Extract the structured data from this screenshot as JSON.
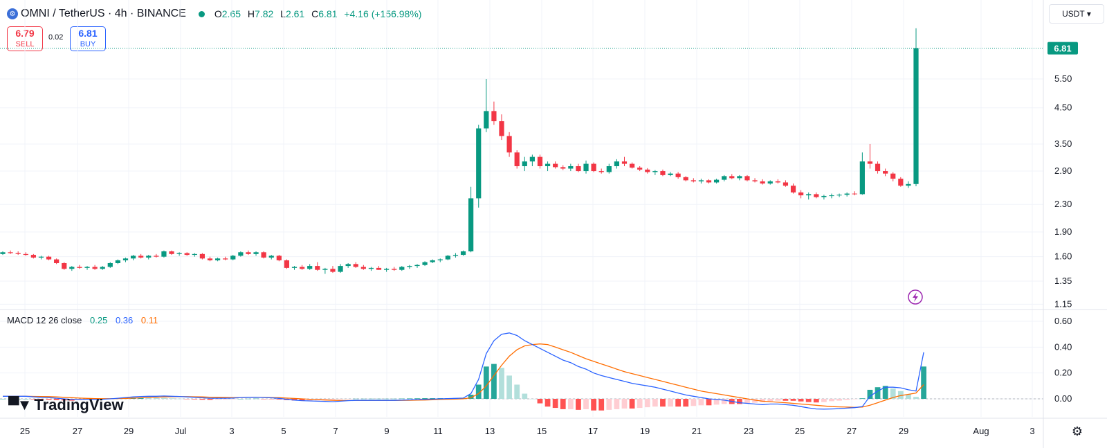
{
  "header": {
    "symbol_icon": "omni-coin-icon",
    "title": "OMNI / TetherUS · 4h · BINANCE",
    "open_label": "O",
    "open": "2.65",
    "high_label": "H",
    "high": "7.82",
    "low_label": "L",
    "low": "2.61",
    "close_label": "C",
    "close": "6.81",
    "change": "+4.16 (+156.98%)"
  },
  "trade": {
    "sell_price": "6.79",
    "sell_label": "SELL",
    "spread": "0.02",
    "buy_price": "6.81",
    "buy_label": "BUY"
  },
  "currency_button": "USDT",
  "currency_icon": "chevron-down-icon",
  "last_price_tag": "6.81",
  "macd": {
    "label": "MACD 12 26 close",
    "histogram": "0.25",
    "macd": "0.36",
    "signal": "0.11"
  },
  "branding": "TradingView",
  "colors": {
    "up": "#089981",
    "down": "#f23645",
    "macd_line": "#2962ff",
    "signal_line": "#ff6d00"
  },
  "chart_data": [
    {
      "type": "candlestick",
      "interval": "4h",
      "scale": "log",
      "y_ticks": [
        "5.50",
        "4.50",
        "3.50",
        "2.90",
        "2.30",
        "1.90",
        "1.60",
        "1.35",
        "1.15"
      ],
      "x_ticks": [
        "25",
        "27",
        "29",
        "Jul",
        "3",
        "5",
        "7",
        "9",
        "11",
        "13",
        "15",
        "17",
        "19",
        "21",
        "23",
        "25",
        "27",
        "29",
        "Aug",
        "3"
      ],
      "ylim": [
        1.15,
        7.82
      ],
      "candles": [
        [
          1.63,
          1.66,
          1.62,
          1.65
        ],
        [
          1.65,
          1.67,
          1.63,
          1.64
        ],
        [
          1.64,
          1.66,
          1.62,
          1.63
        ],
        [
          1.63,
          1.65,
          1.61,
          1.62
        ],
        [
          1.62,
          1.63,
          1.58,
          1.59
        ],
        [
          1.59,
          1.61,
          1.57,
          1.6
        ],
        [
          1.6,
          1.61,
          1.56,
          1.57
        ],
        [
          1.57,
          1.58,
          1.52,
          1.53
        ],
        [
          1.53,
          1.54,
          1.46,
          1.47
        ],
        [
          1.47,
          1.5,
          1.45,
          1.49
        ],
        [
          1.49,
          1.51,
          1.47,
          1.48
        ],
        [
          1.48,
          1.5,
          1.46,
          1.49
        ],
        [
          1.49,
          1.51,
          1.46,
          1.47
        ],
        [
          1.47,
          1.5,
          1.46,
          1.49
        ],
        [
          1.49,
          1.54,
          1.48,
          1.53
        ],
        [
          1.53,
          1.57,
          1.52,
          1.56
        ],
        [
          1.56,
          1.59,
          1.54,
          1.58
        ],
        [
          1.58,
          1.62,
          1.56,
          1.61
        ],
        [
          1.61,
          1.63,
          1.58,
          1.59
        ],
        [
          1.59,
          1.62,
          1.57,
          1.61
        ],
        [
          1.61,
          1.63,
          1.59,
          1.6
        ],
        [
          1.6,
          1.67,
          1.59,
          1.66
        ],
        [
          1.66,
          1.67,
          1.62,
          1.63
        ],
        [
          1.63,
          1.65,
          1.61,
          1.64
        ],
        [
          1.64,
          1.65,
          1.61,
          1.62
        ],
        [
          1.62,
          1.64,
          1.6,
          1.63
        ],
        [
          1.63,
          1.64,
          1.57,
          1.58
        ],
        [
          1.58,
          1.6,
          1.55,
          1.56
        ],
        [
          1.56,
          1.59,
          1.55,
          1.58
        ],
        [
          1.58,
          1.6,
          1.56,
          1.57
        ],
        [
          1.57,
          1.62,
          1.56,
          1.61
        ],
        [
          1.61,
          1.66,
          1.6,
          1.65
        ],
        [
          1.65,
          1.67,
          1.62,
          1.63
        ],
        [
          1.63,
          1.66,
          1.61,
          1.65
        ],
        [
          1.65,
          1.66,
          1.58,
          1.59
        ],
        [
          1.59,
          1.62,
          1.57,
          1.61
        ],
        [
          1.61,
          1.62,
          1.55,
          1.56
        ],
        [
          1.56,
          1.57,
          1.47,
          1.48
        ],
        [
          1.48,
          1.5,
          1.46,
          1.49
        ],
        [
          1.49,
          1.51,
          1.46,
          1.47
        ],
        [
          1.47,
          1.52,
          1.46,
          1.5
        ],
        [
          1.5,
          1.54,
          1.45,
          1.46
        ],
        [
          1.46,
          1.48,
          1.42,
          1.47
        ],
        [
          1.47,
          1.5,
          1.43,
          1.44
        ],
        [
          1.44,
          1.52,
          1.43,
          1.5
        ],
        [
          1.5,
          1.53,
          1.48,
          1.52
        ],
        [
          1.52,
          1.54,
          1.48,
          1.49
        ],
        [
          1.49,
          1.51,
          1.46,
          1.47
        ],
        [
          1.47,
          1.49,
          1.45,
          1.48
        ],
        [
          1.48,
          1.5,
          1.46,
          1.46
        ],
        [
          1.46,
          1.48,
          1.44,
          1.47
        ],
        [
          1.47,
          1.49,
          1.45,
          1.46
        ],
        [
          1.46,
          1.5,
          1.45,
          1.49
        ],
        [
          1.49,
          1.51,
          1.47,
          1.5
        ],
        [
          1.5,
          1.52,
          1.48,
          1.51
        ],
        [
          1.51,
          1.55,
          1.5,
          1.54
        ],
        [
          1.54,
          1.57,
          1.53,
          1.56
        ],
        [
          1.56,
          1.58,
          1.54,
          1.57
        ],
        [
          1.57,
          1.62,
          1.56,
          1.61
        ],
        [
          1.61,
          1.64,
          1.59,
          1.62
        ],
        [
          1.62,
          1.67,
          1.61,
          1.66
        ],
        [
          1.66,
          2.6,
          1.65,
          2.4
        ],
        [
          2.4,
          4.0,
          2.25,
          3.9
        ],
        [
          3.9,
          5.5,
          3.8,
          4.4
        ],
        [
          4.4,
          4.7,
          4.0,
          4.1
        ],
        [
          4.1,
          4.3,
          3.6,
          3.7
        ],
        [
          3.7,
          3.8,
          3.2,
          3.3
        ],
        [
          3.3,
          3.35,
          2.95,
          3.0
        ],
        [
          3.0,
          3.2,
          2.9,
          3.1
        ],
        [
          3.1,
          3.25,
          3.0,
          3.2
        ],
        [
          3.2,
          3.25,
          2.95,
          3.0
        ],
        [
          3.0,
          3.1,
          2.9,
          3.05
        ],
        [
          3.05,
          3.1,
          2.95,
          2.98
        ],
        [
          2.98,
          3.02,
          2.92,
          2.95
        ],
        [
          2.95,
          3.05,
          2.9,
          3.0
        ],
        [
          3.0,
          3.05,
          2.88,
          2.9
        ],
        [
          2.9,
          3.12,
          2.85,
          3.05
        ],
        [
          3.05,
          3.08,
          2.88,
          2.9
        ],
        [
          2.9,
          2.95,
          2.85,
          2.88
        ],
        [
          2.88,
          3.05,
          2.85,
          3.0
        ],
        [
          3.0,
          3.15,
          2.95,
          3.1
        ],
        [
          3.1,
          3.2,
          3.0,
          3.05
        ],
        [
          3.05,
          3.08,
          2.95,
          2.97
        ],
        [
          2.97,
          3.0,
          2.9,
          2.93
        ],
        [
          2.93,
          2.96,
          2.85,
          2.88
        ],
        [
          2.88,
          2.92,
          2.82,
          2.9
        ],
        [
          2.9,
          2.93,
          2.8,
          2.82
        ],
        [
          2.82,
          2.88,
          2.8,
          2.85
        ],
        [
          2.85,
          2.88,
          2.75,
          2.78
        ],
        [
          2.78,
          2.8,
          2.7,
          2.72
        ],
        [
          2.72,
          2.76,
          2.68,
          2.7
        ],
        [
          2.7,
          2.75,
          2.66,
          2.72
        ],
        [
          2.72,
          2.74,
          2.66,
          2.68
        ],
        [
          2.68,
          2.75,
          2.66,
          2.73
        ],
        [
          2.73,
          2.82,
          2.7,
          2.8
        ],
        [
          2.8,
          2.84,
          2.74,
          2.76
        ],
        [
          2.76,
          2.82,
          2.72,
          2.8
        ],
        [
          2.8,
          2.82,
          2.7,
          2.72
        ],
        [
          2.72,
          2.76,
          2.68,
          2.7
        ],
        [
          2.7,
          2.74,
          2.64,
          2.66
        ],
        [
          2.66,
          2.72,
          2.64,
          2.7
        ],
        [
          2.7,
          2.74,
          2.66,
          2.68
        ],
        [
          2.68,
          2.72,
          2.6,
          2.62
        ],
        [
          2.62,
          2.66,
          2.48,
          2.5
        ],
        [
          2.5,
          2.54,
          2.4,
          2.45
        ],
        [
          2.45,
          2.5,
          2.38,
          2.47
        ],
        [
          2.47,
          2.5,
          2.4,
          2.42
        ],
        [
          2.42,
          2.46,
          2.38,
          2.44
        ],
        [
          2.44,
          2.48,
          2.4,
          2.45
        ],
        [
          2.45,
          2.48,
          2.42,
          2.46
        ],
        [
          2.46,
          2.5,
          2.43,
          2.48
        ],
        [
          2.48,
          2.52,
          2.45,
          2.47
        ],
        [
          2.47,
          3.3,
          2.46,
          3.1
        ],
        [
          3.1,
          3.5,
          2.95,
          3.05
        ],
        [
          3.05,
          3.1,
          2.85,
          2.9
        ],
        [
          2.9,
          2.95,
          2.8,
          2.85
        ],
        [
          2.85,
          2.88,
          2.7,
          2.75
        ],
        [
          2.75,
          2.78,
          2.6,
          2.62
        ],
        [
          2.62,
          2.7,
          2.58,
          2.65
        ],
        [
          2.65,
          7.82,
          2.61,
          6.81
        ]
      ]
    },
    {
      "type": "macd",
      "label": "MACD 12 26 close",
      "y_ticks": [
        "0.60",
        "0.40",
        "0.20",
        "0.00"
      ],
      "ylim": [
        -0.1,
        0.62
      ],
      "macd": [
        0.02,
        0.02,
        0.02,
        0.02,
        0.015,
        0.012,
        0.01,
        0.005,
        0.0,
        -0.005,
        -0.005,
        -0.005,
        -0.005,
        -0.003,
        0.0,
        0.005,
        0.01,
        0.015,
        0.018,
        0.02,
        0.02,
        0.022,
        0.02,
        0.018,
        0.015,
        0.012,
        0.008,
        0.005,
        0.005,
        0.005,
        0.006,
        0.01,
        0.012,
        0.013,
        0.01,
        0.008,
        0.004,
        -0.004,
        -0.01,
        -0.014,
        -0.016,
        -0.018,
        -0.02,
        -0.022,
        -0.018,
        -0.014,
        -0.012,
        -0.012,
        -0.012,
        -0.012,
        -0.012,
        -0.012,
        -0.01,
        -0.008,
        -0.006,
        -0.004,
        -0.002,
        0.0,
        0.002,
        0.004,
        0.006,
        0.04,
        0.15,
        0.35,
        0.45,
        0.5,
        0.51,
        0.49,
        0.45,
        0.42,
        0.39,
        0.36,
        0.33,
        0.3,
        0.28,
        0.25,
        0.23,
        0.2,
        0.18,
        0.165,
        0.15,
        0.135,
        0.12,
        0.11,
        0.1,
        0.09,
        0.075,
        0.06,
        0.045,
        0.03,
        0.02,
        0.01,
        0.0,
        -0.005,
        -0.01,
        -0.02,
        -0.03,
        -0.035,
        -0.04,
        -0.045,
        -0.04,
        -0.04,
        -0.045,
        -0.05,
        -0.06,
        -0.07,
        -0.078,
        -0.08,
        -0.078,
        -0.076,
        -0.072,
        -0.068,
        -0.06,
        0.02,
        0.06,
        0.09,
        0.09,
        0.085,
        0.07,
        0.06,
        0.36
      ],
      "signal": [
        0.02,
        0.02,
        0.02,
        0.02,
        0.019,
        0.018,
        0.017,
        0.015,
        0.012,
        0.009,
        0.006,
        0.004,
        0.002,
        0.001,
        0.001,
        0.002,
        0.004,
        0.006,
        0.008,
        0.011,
        0.013,
        0.015,
        0.016,
        0.017,
        0.017,
        0.016,
        0.015,
        0.013,
        0.012,
        0.011,
        0.01,
        0.01,
        0.011,
        0.011,
        0.011,
        0.01,
        0.009,
        0.006,
        0.003,
        0.0,
        -0.003,
        -0.006,
        -0.009,
        -0.011,
        -0.013,
        -0.013,
        -0.013,
        -0.013,
        -0.013,
        -0.013,
        -0.013,
        -0.013,
        -0.012,
        -0.011,
        -0.01,
        -0.009,
        -0.007,
        -0.005,
        -0.003,
        -0.002,
        0.0,
        0.008,
        0.04,
        0.1,
        0.18,
        0.26,
        0.33,
        0.38,
        0.41,
        0.42,
        0.425,
        0.42,
        0.4,
        0.38,
        0.36,
        0.335,
        0.31,
        0.29,
        0.27,
        0.25,
        0.23,
        0.21,
        0.195,
        0.18,
        0.165,
        0.15,
        0.135,
        0.12,
        0.105,
        0.09,
        0.075,
        0.06,
        0.05,
        0.04,
        0.03,
        0.02,
        0.01,
        0.0,
        -0.01,
        -0.018,
        -0.022,
        -0.026,
        -0.03,
        -0.035,
        -0.04,
        -0.045,
        -0.05,
        -0.055,
        -0.06,
        -0.062,
        -0.064,
        -0.066,
        -0.064,
        -0.05,
        -0.03,
        -0.01,
        0.01,
        0.025,
        0.035,
        0.045,
        0.11
      ]
    }
  ]
}
